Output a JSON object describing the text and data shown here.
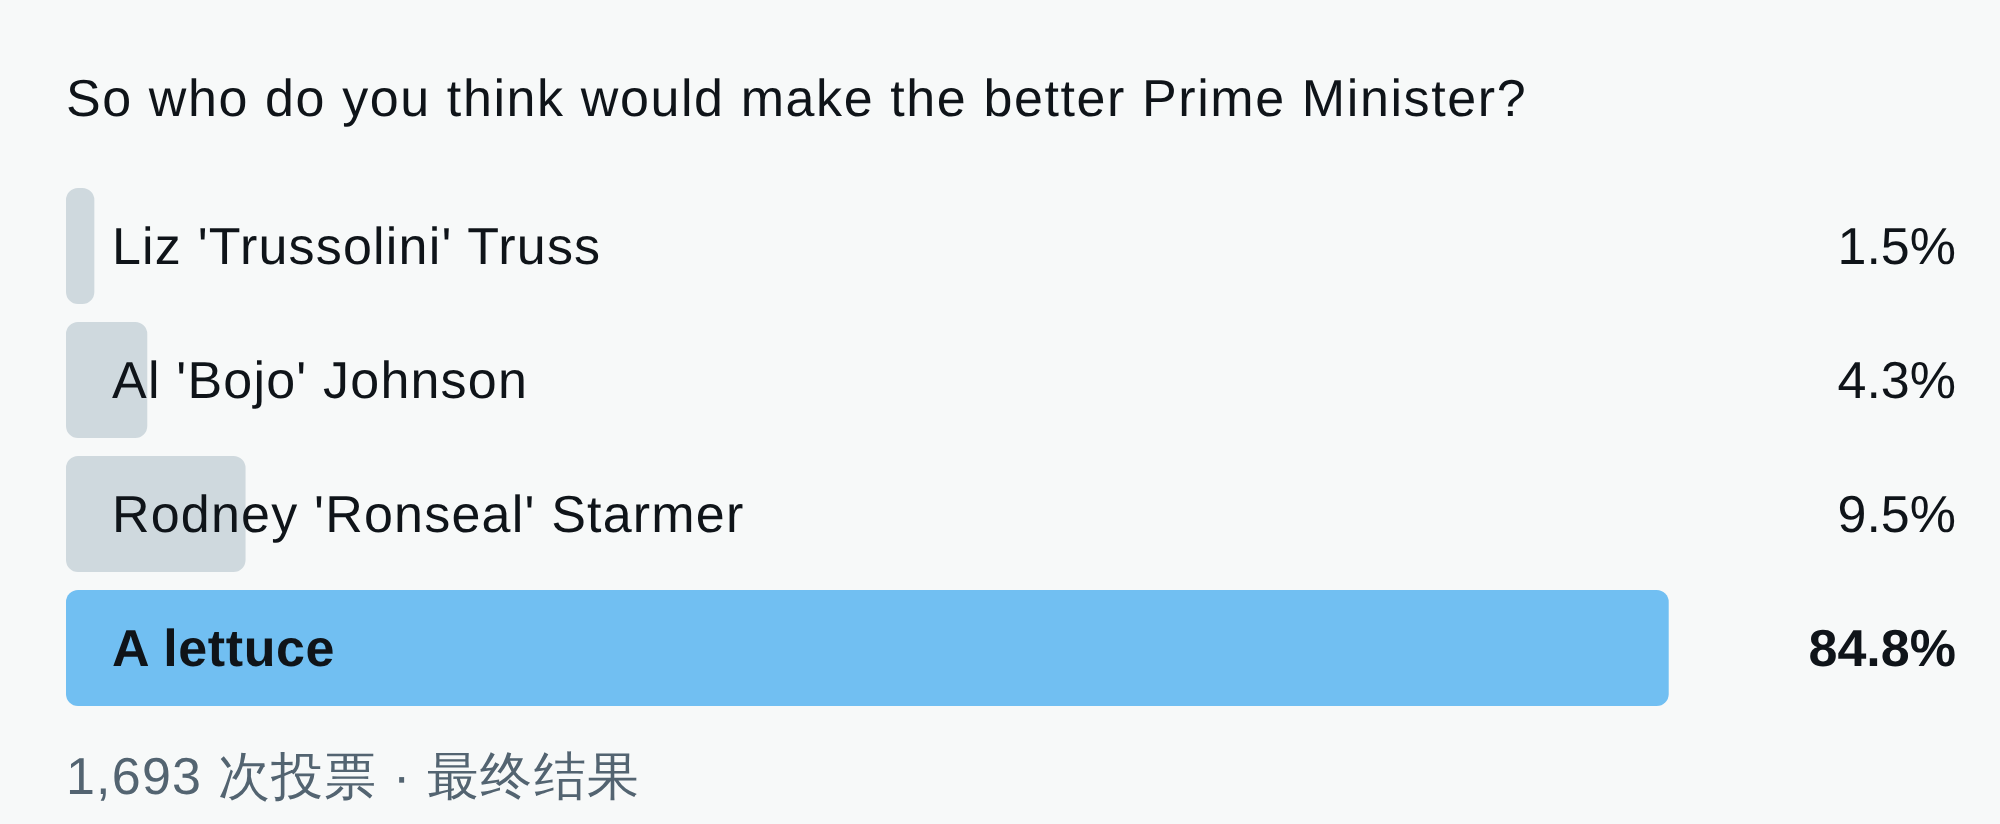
{
  "chart_data": {
    "type": "bar",
    "orientation": "horizontal",
    "title": "So who do you think would make the better Prime Minister?",
    "categories": [
      "Liz 'Trussolini' Truss",
      "Al 'Bojo' Johnson",
      "Rodney 'Ronseal' Starmer",
      "A lettuce"
    ],
    "values": [
      1.5,
      4.3,
      9.5,
      84.8
    ],
    "colors": [
      "#cfd9de",
      "#cfd9de",
      "#cfd9de",
      "#71bff2"
    ],
    "value_labels": [
      "1.5%",
      "4.3%",
      "9.5%",
      "84.8%"
    ],
    "annotations": [
      "1,693 次投票 · 最终结果"
    ]
  }
}
